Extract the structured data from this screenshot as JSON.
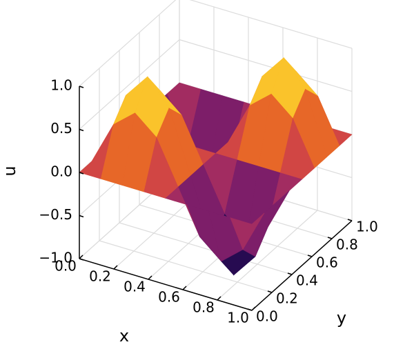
{
  "chart_data": {
    "type": "surface",
    "xlabel": "x",
    "ylabel": "y",
    "zlabel": "u",
    "x": [
      0,
      0.125,
      0.25,
      0.375,
      0.5,
      0.625,
      0.75,
      0.875,
      1
    ],
    "y": [
      0,
      0.125,
      0.25,
      0.375,
      0.5,
      0.625,
      0.75,
      0.875,
      1
    ],
    "z": [
      [
        0,
        0,
        0,
        0,
        0,
        0,
        0,
        0,
        0
      ],
      [
        0,
        0.5,
        0.71,
        0.5,
        0,
        -0.5,
        -0.71,
        -0.5,
        0
      ],
      [
        0,
        0.71,
        1,
        0.71,
        0,
        -0.71,
        -1,
        -0.71,
        0
      ],
      [
        0,
        0.5,
        0.71,
        0.5,
        0,
        -0.5,
        -0.71,
        -0.5,
        0
      ],
      [
        0,
        0,
        0,
        0,
        0,
        0,
        0,
        0,
        0
      ],
      [
        0,
        -0.5,
        -0.71,
        -0.5,
        0,
        0.5,
        0.71,
        0.5,
        0
      ],
      [
        0,
        -0.71,
        -1,
        -0.71,
        0,
        0.71,
        1,
        0.71,
        0
      ],
      [
        0,
        -0.5,
        -0.71,
        -0.5,
        0,
        0.5,
        0.71,
        0.5,
        0
      ],
      [
        0,
        0,
        0,
        0,
        0,
        0,
        0,
        0,
        0
      ]
    ],
    "colormap": "inferno",
    "xlim": [
      0,
      1
    ],
    "ylim": [
      0,
      1
    ],
    "zlim": [
      -1,
      1
    ],
    "xticks": [
      {
        "value": 0,
        "label": "0.0"
      },
      0.2,
      0.4,
      0.6,
      0.8,
      {
        "value": 1,
        "label": "1.0"
      }
    ],
    "yticks": [
      {
        "value": 0,
        "label": "0.0"
      },
      0.2,
      0.4,
      0.6,
      0.8,
      {
        "value": 1,
        "label": "1.0"
      }
    ],
    "zticks": [
      {
        "value": -1,
        "label": "−1.0"
      },
      {
        "value": -0.5,
        "label": "−0.5"
      },
      {
        "value": 0,
        "label": "0.0"
      },
      0.5,
      {
        "value": 1,
        "label": "1.0"
      }
    ],
    "grid": true
  }
}
